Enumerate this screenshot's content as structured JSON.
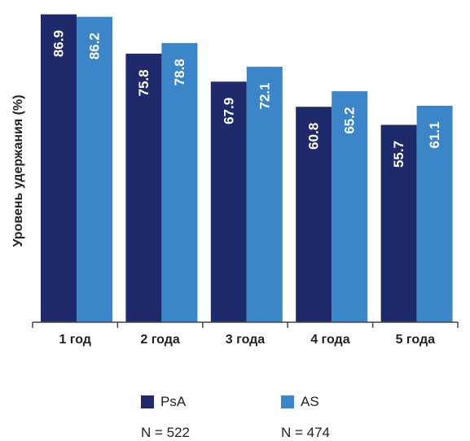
{
  "chart_data": {
    "type": "bar",
    "categories": [
      "1 год",
      "2 года",
      "3 года",
      "4 года",
      "5 года"
    ],
    "series": [
      {
        "name": "PsA",
        "values": [
          86.9,
          75.8,
          67.9,
          60.8,
          55.7
        ],
        "color": "#1f2a6b",
        "n_label": "N = 522"
      },
      {
        "name": "AS",
        "values": [
          86.2,
          78.8,
          72.1,
          65.2,
          61.1
        ],
        "color": "#3b86c8",
        "n_label": "N = 474"
      }
    ],
    "title": "",
    "xlabel": "",
    "ylabel": "Уровень удержания (%)",
    "ylim": [
      0,
      87.5
    ],
    "grid": false,
    "legend_position": "bottom",
    "data_labels": true
  }
}
